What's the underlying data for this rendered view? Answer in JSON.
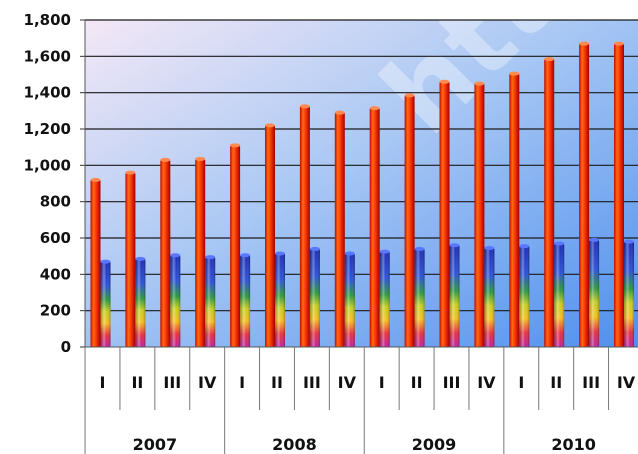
{
  "chart_data": {
    "type": "bar",
    "categories": [
      "I",
      "II",
      "III",
      "IV",
      "I",
      "II",
      "III",
      "IV",
      "I",
      "II",
      "III",
      "IV",
      "I",
      "II",
      "III",
      "IV"
    ],
    "groups": [
      {
        "label": "2007"
      },
      {
        "label": "2008"
      },
      {
        "label": "2009"
      },
      {
        "label": "2010"
      }
    ],
    "series": [
      {
        "values": [
          920,
          960,
          1030,
          1035,
          1110,
          1220,
          1325,
          1290,
          1315,
          1385,
          1460,
          1450,
          1505,
          1585,
          1670,
          1670
        ]
      },
      {
        "values": [
          470,
          485,
          505,
          495,
          505,
          515,
          540,
          515,
          525,
          540,
          560,
          545,
          555,
          570,
          590,
          580
        ]
      }
    ],
    "yticks": [
      "0",
      "200",
      "400",
      "600",
      "800",
      "1,000",
      "1,200",
      "1,400",
      "1,600",
      "1,800"
    ],
    "ylim": [
      0,
      1800
    ],
    "grid": true,
    "colors": {
      "series1": "#e03010",
      "series2_top": "#2040c0",
      "background_left": "#f2e6f6",
      "background_right": "#5a9af0"
    },
    "watermark": "http"
  }
}
